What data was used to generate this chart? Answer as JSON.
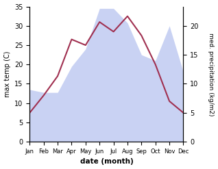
{
  "months": [
    "Jan",
    "Feb",
    "Mar",
    "Apr",
    "May",
    "Jun",
    "Jul",
    "Aug",
    "Sep",
    "Oct",
    "Nov",
    "Dec"
  ],
  "temperature": [
    7.5,
    12.0,
    17.0,
    26.5,
    25.0,
    31.0,
    28.5,
    32.5,
    27.5,
    20.0,
    10.5,
    7.5
  ],
  "precipitation_raw": [
    9,
    8.5,
    8.5,
    13,
    16,
    23,
    23,
    20.5,
    15,
    14,
    20,
    12
  ],
  "temp_ylim": [
    0,
    35
  ],
  "precip_ylim": [
    0,
    23.33
  ],
  "temp_yticks": [
    0,
    5,
    10,
    15,
    20,
    25,
    30,
    35
  ],
  "precip_yticks": [
    0,
    5,
    10,
    15,
    20
  ],
  "xlabel": "date (month)",
  "ylabel_left": "max temp (C)",
  "ylabel_right": "med. precipitation (kg/m2)",
  "line_color": "#a03050",
  "fill_color": "#b8c4f0",
  "fill_alpha": 0.75,
  "background_color": "#ffffff",
  "fig_width": 3.18,
  "fig_height": 2.47,
  "dpi": 100
}
